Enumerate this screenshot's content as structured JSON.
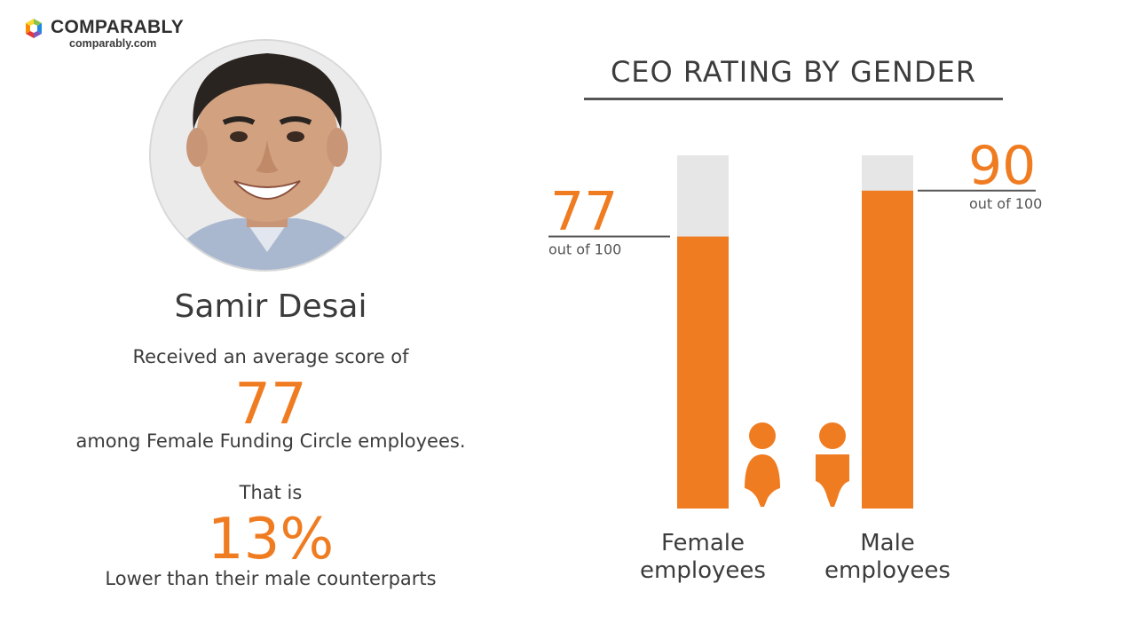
{
  "brand": {
    "name": "COMPARABLY",
    "url": "comparably.com"
  },
  "profile": {
    "name": "Samir Desai",
    "intro": "Received an average score of",
    "score": "77",
    "among": "among Female Funding Circle employees.",
    "that_is": "That is",
    "difference": "13%",
    "comparison": "Lower than their male counterparts"
  },
  "colors": {
    "accent": "#f07c22",
    "track": "#e6e6e6",
    "text": "#3c3c3c"
  },
  "chart_data": {
    "type": "bar",
    "title": "CEO RATING BY GENDER",
    "categories": [
      "Female employees",
      "Male employees"
    ],
    "category_lines": [
      [
        "Female",
        "employees"
      ],
      [
        "Male",
        "employees"
      ]
    ],
    "values": [
      77,
      90
    ],
    "value_labels": [
      "77",
      "90"
    ],
    "value_caption": "out of 100",
    "ylim": [
      0,
      100
    ],
    "icons": [
      "female-icon",
      "male-icon"
    ],
    "grid": false
  }
}
